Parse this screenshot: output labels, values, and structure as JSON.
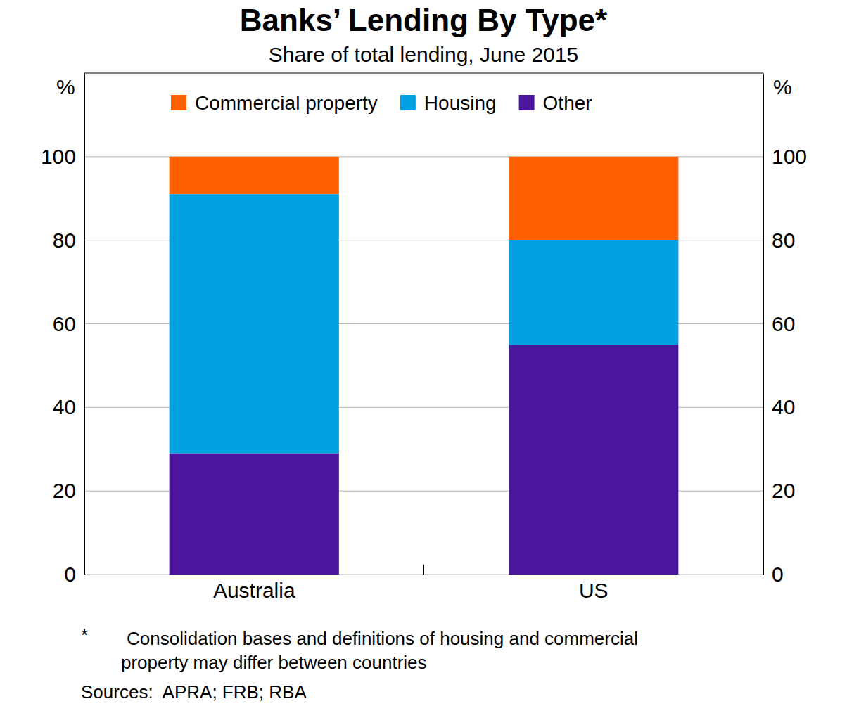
{
  "chart_data": {
    "type": "bar",
    "title": "Banks’ Lending By Type*",
    "subtitle": "Share of total lending, June 2015",
    "y_label": "%",
    "categories": [
      "Australia",
      "US"
    ],
    "series": [
      {
        "name": "Commercial property",
        "color": "#ff6000",
        "values": [
          9,
          20
        ]
      },
      {
        "name": "Housing",
        "color": "#00a0e1",
        "values": [
          62,
          25
        ]
      },
      {
        "name": "Other",
        "color": "#4b169b",
        "values": [
          29,
          55
        ]
      }
    ],
    "stacked": true,
    "grid": true,
    "legend": "top",
    "ylim": [
      0,
      120
    ],
    "yticks": [
      0,
      20,
      40,
      60,
      80,
      100
    ],
    "footnote_marker": "*",
    "footnote": [
      "Consolidation bases and definitions of housing and commercial",
      "property may differ between countries"
    ],
    "sources": "Sources:  APRA; FRB; RBA"
  }
}
